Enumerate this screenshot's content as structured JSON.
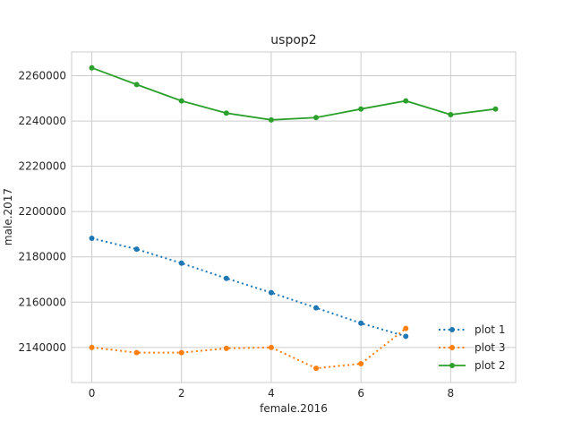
{
  "chart_data": {
    "type": "line",
    "title": "uspop2",
    "xlabel": "female.2016",
    "ylabel": "male.2017",
    "xlim": [
      -0.45,
      9.45
    ],
    "ylim": [
      2124500,
      2270500
    ],
    "xticks": [
      0,
      2,
      4,
      6,
      8
    ],
    "yticks": [
      2140000,
      2160000,
      2180000,
      2200000,
      2220000,
      2240000,
      2260000
    ],
    "grid": true,
    "legend_position": "lower-right",
    "series": [
      {
        "name": "plot 1",
        "color": "#1f77b4",
        "linestyle": "dotted",
        "marker": "circle",
        "x": [
          0,
          1,
          2,
          3,
          4,
          5,
          6,
          7
        ],
        "y": [
          2188200,
          2183400,
          2177200,
          2170500,
          2164200,
          2157500,
          2150700,
          2144900
        ]
      },
      {
        "name": "plot 3",
        "color": "#ff7f0e",
        "linestyle": "dotted",
        "marker": "circle",
        "x": [
          0,
          1,
          2,
          3,
          4,
          5,
          6,
          7
        ],
        "y": [
          2140000,
          2137700,
          2137700,
          2139600,
          2140000,
          2130800,
          2132800,
          2148400
        ]
      },
      {
        "name": "plot 2",
        "color": "#2ca02c",
        "linestyle": "solid",
        "marker": "circle",
        "x": [
          0,
          1,
          2,
          3,
          4,
          5,
          6,
          7,
          8,
          9
        ],
        "y": [
          2263500,
          2256100,
          2248900,
          2243500,
          2240500,
          2241500,
          2245300,
          2248900,
          2242800,
          2245300
        ]
      }
    ]
  }
}
